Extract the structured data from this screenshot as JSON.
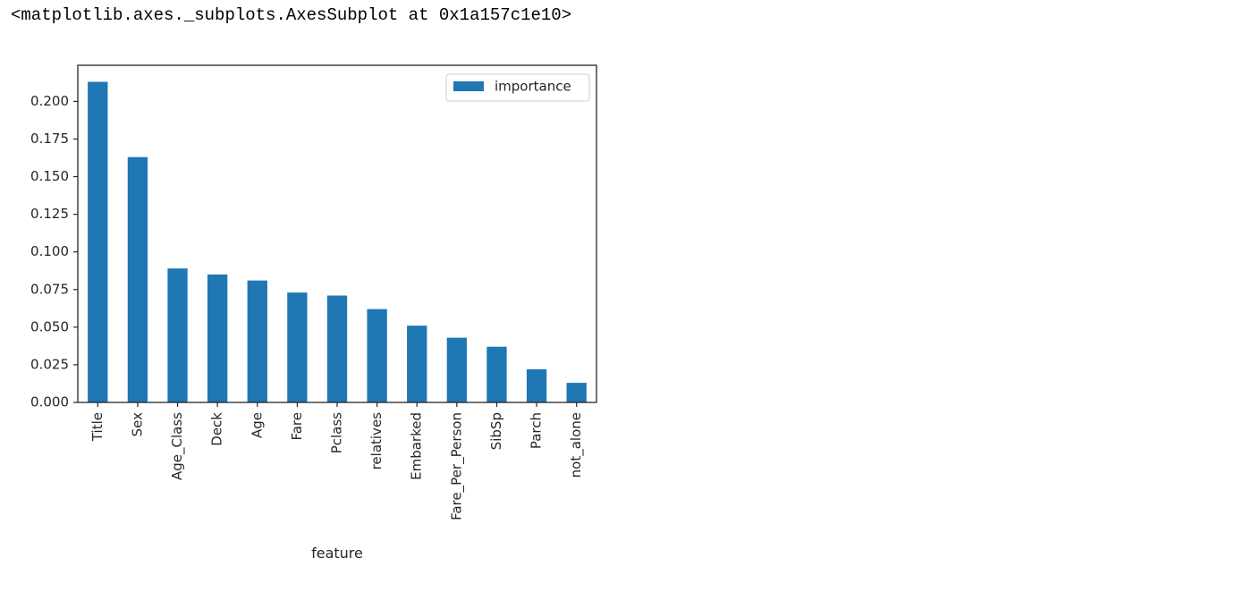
{
  "output": {
    "repr_text": "<matplotlib.axes._subplots.AxesSubplot at 0x1a157c1e10>"
  },
  "colors": {
    "bar": "#1f77b4",
    "axes": "#262626",
    "background": "#ffffff"
  },
  "chart_data": {
    "type": "bar",
    "title": "",
    "xlabel": "feature",
    "ylabel": "",
    "categories": [
      "Title",
      "Sex",
      "Age_Class",
      "Deck",
      "Age",
      "Fare",
      "Pclass",
      "relatives",
      "Embarked",
      "Fare_Per_Person",
      "SibSp",
      "Parch",
      "not_alone"
    ],
    "series": [
      {
        "name": "importance",
        "values": [
          0.213,
          0.163,
          0.089,
          0.085,
          0.081,
          0.073,
          0.071,
          0.062,
          0.051,
          0.043,
          0.037,
          0.022,
          0.013
        ]
      }
    ],
    "ylim": [
      0,
      0.224
    ],
    "yticks": [
      0.0,
      0.025,
      0.05,
      0.075,
      0.1,
      0.125,
      0.15,
      0.175,
      0.2
    ],
    "ytick_labels": [
      "0.000",
      "0.025",
      "0.050",
      "0.075",
      "0.100",
      "0.125",
      "0.150",
      "0.175",
      "0.200"
    ],
    "legend": {
      "position": "upper-right",
      "entries": [
        "importance"
      ]
    },
    "grid": false
  }
}
